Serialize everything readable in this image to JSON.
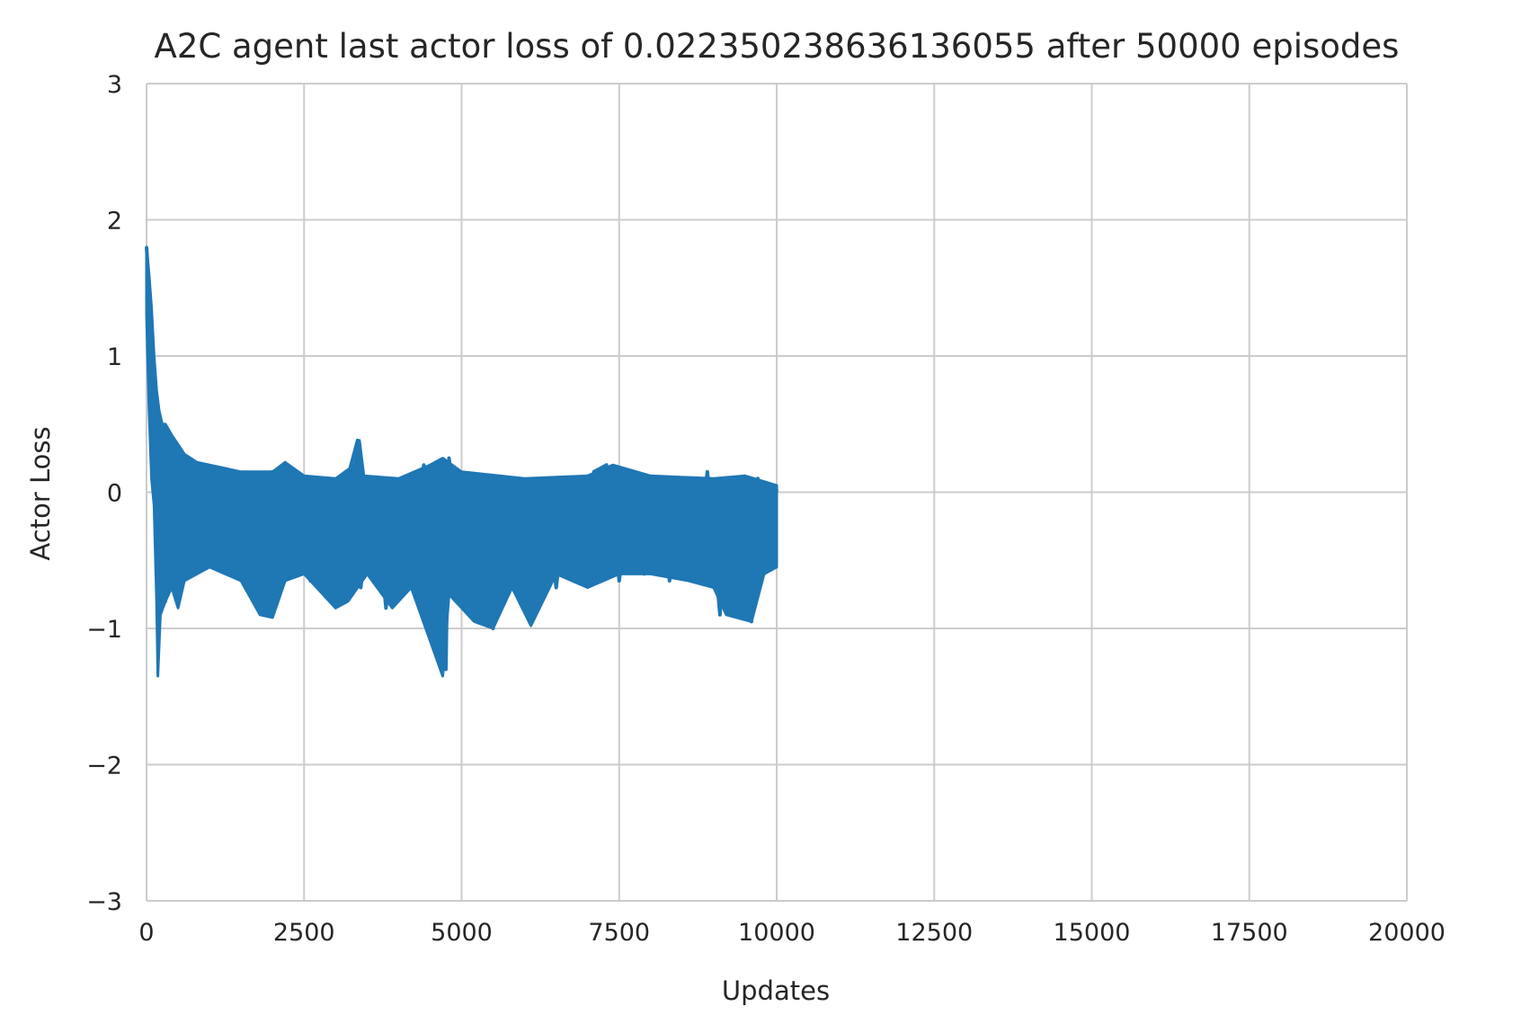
{
  "chart_data": {
    "type": "line",
    "title": "A2C agent last actor loss of 0.022350238636136055 after 50000 episodes",
    "xlabel": "Updates",
    "ylabel": "Actor Loss",
    "xlim": [
      0,
      20000
    ],
    "ylim": [
      -3,
      3
    ],
    "xticks": [
      0,
      2500,
      5000,
      7500,
      10000,
      12500,
      15000,
      17500,
      20000
    ],
    "xtick_labels": [
      "0",
      "2500",
      "5000",
      "7500",
      "10000",
      "12500",
      "15000",
      "17500",
      "20000"
    ],
    "yticks": [
      -3,
      -2,
      -1,
      0,
      1,
      2,
      3
    ],
    "ytick_labels": [
      "−3",
      "−2",
      "−1",
      "0",
      "1",
      "2",
      "3"
    ],
    "grid": true,
    "line_color": "#1f77b4",
    "series": [
      {
        "x": [
          0,
          40,
          80,
          120,
          160,
          200,
          250,
          300,
          350,
          400,
          450,
          500,
          600,
          700,
          800,
          900,
          1000,
          1200,
          1400,
          1600,
          1800,
          1900,
          2000,
          2200,
          2400,
          2600,
          2800,
          3000,
          3200,
          3350,
          3400,
          3600,
          3800,
          4000,
          4200,
          4400,
          4600,
          4750,
          4800,
          5000,
          5200,
          5400,
          5500,
          5600,
          5800,
          6000,
          6100,
          6300,
          6500,
          6700,
          6900,
          7100,
          7300,
          7500,
          7700,
          7900,
          8100,
          8300,
          8500,
          8700,
          8900,
          9100,
          9200,
          9400,
          9600,
          9700,
          9800,
          10000
        ],
        "y": [
          1.8,
          1.5,
          1.2,
          0.9,
          0.5,
          0.2,
          0.3,
          -0.8,
          0.35,
          -0.6,
          0.25,
          -0.5,
          0.2,
          -0.6,
          0.15,
          -0.55,
          0.1,
          -0.5,
          0.12,
          -0.6,
          0.1,
          -0.9,
          0.15,
          -0.6,
          0.1,
          -0.65,
          0.1,
          -0.8,
          0.12,
          0.38,
          -0.7,
          0.1,
          -0.85,
          0.08,
          -0.6,
          0.2,
          -0.75,
          -1.3,
          0.25,
          -0.7,
          0.1,
          -0.95,
          -1.0,
          0.1,
          -0.7,
          0.08,
          -0.95,
          0.1,
          -0.7,
          0.1,
          -0.6,
          0.15,
          0.2,
          -0.65,
          0.1,
          -0.6,
          0.08,
          -0.65,
          0.1,
          -0.6,
          0.15,
          -0.9,
          0.1,
          -0.7,
          -0.95,
          0.1,
          -0.55,
          0.02
        ]
      }
    ],
    "envelope_upper": [
      [
        0,
        1.8
      ],
      [
        40,
        1.6
      ],
      [
        80,
        1.35
      ],
      [
        120,
        1.0
      ],
      [
        160,
        0.75
      ],
      [
        200,
        0.6
      ],
      [
        250,
        0.5
      ],
      [
        300,
        0.5
      ],
      [
        400,
        0.42
      ],
      [
        500,
        0.35
      ],
      [
        600,
        0.28
      ],
      [
        800,
        0.22
      ],
      [
        1000,
        0.2
      ],
      [
        1500,
        0.15
      ],
      [
        2000,
        0.15
      ],
      [
        2200,
        0.22
      ],
      [
        2500,
        0.12
      ],
      [
        3000,
        0.1
      ],
      [
        3300,
        0.2
      ],
      [
        3380,
        0.38
      ],
      [
        3450,
        0.12
      ],
      [
        4000,
        0.1
      ],
      [
        4500,
        0.2
      ],
      [
        4700,
        0.25
      ],
      [
        5000,
        0.15
      ],
      [
        6000,
        0.1
      ],
      [
        7000,
        0.12
      ],
      [
        7400,
        0.2
      ],
      [
        8000,
        0.12
      ],
      [
        9000,
        0.1
      ],
      [
        9500,
        0.12
      ],
      [
        10000,
        0.05
      ]
    ],
    "envelope_lower": [
      [
        0,
        1.3
      ],
      [
        40,
        0.6
      ],
      [
        80,
        0.1
      ],
      [
        120,
        -0.1
      ],
      [
        160,
        -0.8
      ],
      [
        180,
        -1.35
      ],
      [
        220,
        -0.9
      ],
      [
        300,
        -0.8
      ],
      [
        400,
        -0.7
      ],
      [
        500,
        -0.85
      ],
      [
        600,
        -0.65
      ],
      [
        800,
        -0.6
      ],
      [
        1000,
        -0.55
      ],
      [
        1500,
        -0.65
      ],
      [
        1800,
        -0.9
      ],
      [
        2000,
        -0.92
      ],
      [
        2200,
        -0.65
      ],
      [
        2500,
        -0.6
      ],
      [
        3000,
        -0.85
      ],
      [
        3200,
        -0.8
      ],
      [
        3500,
        -0.6
      ],
      [
        3900,
        -0.85
      ],
      [
        4200,
        -0.7
      ],
      [
        4700,
        -1.35
      ],
      [
        4800,
        -0.75
      ],
      [
        5200,
        -0.95
      ],
      [
        5500,
        -1.0
      ],
      [
        5800,
        -0.7
      ],
      [
        6100,
        -0.98
      ],
      [
        6500,
        -0.6
      ],
      [
        7000,
        -0.7
      ],
      [
        7500,
        -0.6
      ],
      [
        8000,
        -0.6
      ],
      [
        8600,
        -0.65
      ],
      [
        9000,
        -0.7
      ],
      [
        9200,
        -0.9
      ],
      [
        9600,
        -0.95
      ],
      [
        9800,
        -0.6
      ],
      [
        10000,
        -0.55
      ]
    ]
  }
}
